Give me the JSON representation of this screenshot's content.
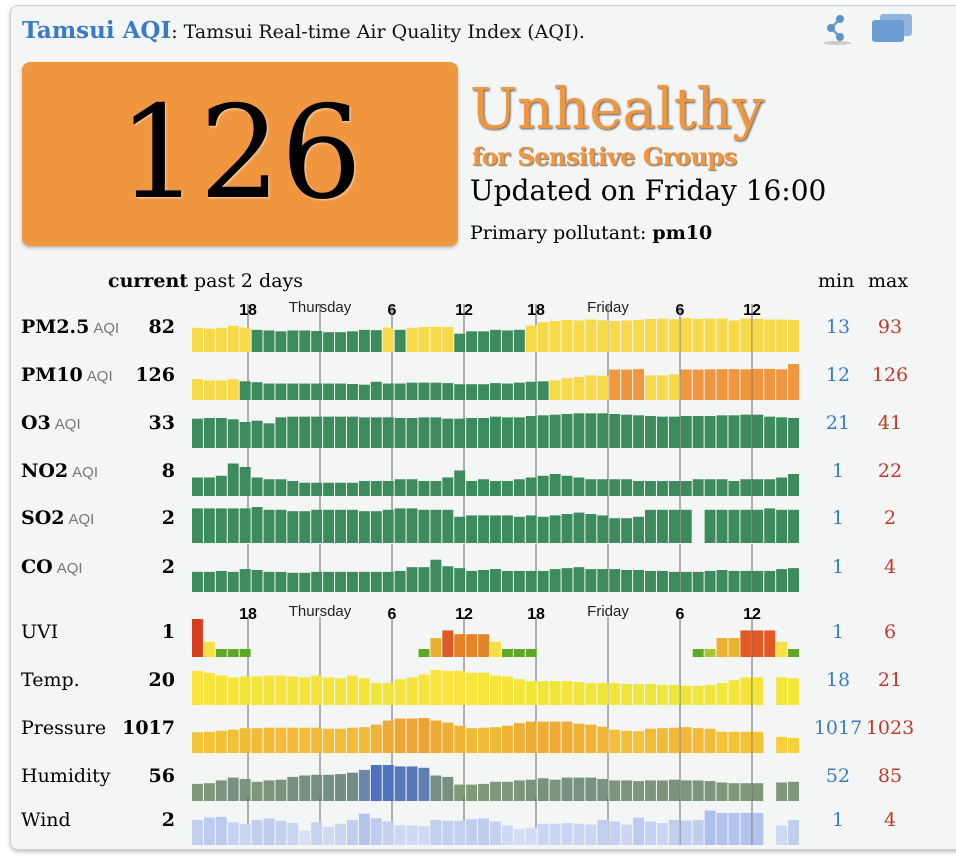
{
  "header": {
    "city": "Tamsui AQI",
    "colon": ":",
    "subtitle": "Tamsui Real-time Air Quality Index (AQI)."
  },
  "icons": {
    "share": "share-icon",
    "embed": "embed-widget-icon"
  },
  "aqi": {
    "value": "126",
    "level": "Unhealthy",
    "level_sub": "for Sensitive Groups",
    "color": "#ef963f",
    "updated": "Updated on Friday 16:00",
    "primary_label": "Primary pollutant:",
    "primary_value": "pm10"
  },
  "columns": {
    "current": "current",
    "history": "past 2 days",
    "min": "min",
    "max": "max"
  },
  "time_axis": [
    "18",
    "Thursday",
    "6",
    "12",
    "18",
    "Friday",
    "6",
    "12"
  ],
  "rows": [
    {
      "label": "PM2.5",
      "sub": "AQI",
      "current": "82",
      "min": "13",
      "max": "93",
      "type": "aqi",
      "ylim": [
        0,
        95
      ],
      "values": [
        55,
        52,
        55,
        62,
        56,
        48,
        46,
        43,
        46,
        46,
        44,
        40,
        40,
        43,
        48,
        47,
        56,
        48,
        55,
        58,
        58,
        58,
        35,
        43,
        43,
        48,
        46,
        48,
        62,
        74,
        78,
        82,
        80,
        83,
        80,
        78,
        80,
        82,
        85,
        86,
        84,
        88,
        85,
        86,
        86,
        80,
        86,
        85,
        83,
        83,
        82
      ]
    },
    {
      "label": "PM10",
      "sub": "AQI",
      "current": "126",
      "min": "12",
      "max": "126",
      "type": "aqi",
      "ylim": [
        0,
        126
      ],
      "values": [
        58,
        52,
        52,
        58,
        48,
        44,
        38,
        38,
        38,
        38,
        38,
        38,
        38,
        36,
        33,
        46,
        38,
        38,
        42,
        42,
        42,
        40,
        35,
        35,
        35,
        40,
        38,
        42,
        46,
        48,
        52,
        62,
        68,
        75,
        73,
        101,
        101,
        103,
        75,
        75,
        80,
        101,
        101,
        102,
        103,
        103,
        102,
        104,
        104,
        102,
        126
      ]
    },
    {
      "label": "O3",
      "sub": "AQI",
      "current": "33",
      "min": "21",
      "max": "41",
      "type": "aqi",
      "ylim": [
        0,
        42
      ],
      "values": [
        32,
        33,
        33,
        31,
        27,
        29,
        25,
        34,
        35,
        35,
        35,
        35,
        35,
        35,
        34,
        34,
        34,
        33,
        33,
        34,
        34,
        32,
        32,
        33,
        33,
        35,
        34,
        34,
        36,
        37,
        38,
        39,
        40,
        40,
        40,
        39,
        38,
        37,
        36,
        35,
        35,
        36,
        36,
        36,
        37,
        37,
        38,
        38,
        35,
        34,
        33
      ]
    },
    {
      "label": "NO2",
      "sub": "AQI",
      "current": "8",
      "min": "1",
      "max": "22",
      "type": "aqi",
      "ylim": [
        0,
        16
      ],
      "values": [
        6,
        6,
        7,
        14,
        12,
        6,
        5,
        5,
        4,
        3,
        3,
        3,
        3,
        3,
        4,
        4,
        4,
        5,
        5,
        4,
        4,
        6,
        10,
        4,
        5,
        4,
        4,
        5,
        6,
        7,
        8,
        7,
        6,
        5,
        5,
        5,
        5,
        4,
        4,
        4,
        4,
        4,
        5,
        5,
        5,
        4,
        5,
        5,
        5,
        6,
        8
      ]
    },
    {
      "label": "SO2",
      "sub": "AQI",
      "current": "2",
      "min": "1",
      "max": "2",
      "type": "aqi",
      "ylim": [
        0,
        2
      ],
      "values": [
        1.9,
        1.9,
        1.9,
        1.9,
        1.9,
        2,
        1.8,
        1.8,
        1.7,
        1.7,
        1.8,
        1.8,
        1.8,
        1.8,
        1.7,
        1.7,
        1.8,
        1.9,
        1.9,
        1.8,
        1.8,
        1.8,
        1.3,
        1.4,
        1.4,
        1.4,
        1.4,
        1.3,
        1.4,
        1.3,
        1.4,
        1.5,
        1.6,
        1.5,
        1.4,
        1.2,
        1.2,
        1.3,
        1.8,
        1.8,
        1.8,
        1.8,
        null,
        1.8,
        1.8,
        1.8,
        1.8,
        1.8,
        1.9,
        1.8,
        1.8
      ]
    },
    {
      "label": "CO",
      "sub": "AQI",
      "current": "2",
      "min": "1",
      "max": "4",
      "type": "aqi",
      "ylim": [
        0,
        3
      ],
      "values": [
        1.3,
        1.3,
        1.4,
        1.3,
        1.6,
        1.5,
        1.3,
        1.3,
        1.2,
        1.2,
        1.3,
        1.3,
        1.3,
        1.3,
        1.3,
        1.3,
        1.3,
        1.4,
        1.8,
        1.8,
        2.6,
        1.9,
        1.7,
        1.4,
        1.5,
        1.6,
        1.4,
        1.4,
        1.4,
        1.4,
        1.6,
        1.7,
        1.8,
        1.6,
        1.6,
        1.6,
        1.5,
        1.5,
        1.4,
        1.4,
        1.3,
        1.3,
        1.3,
        1.4,
        1.5,
        1.4,
        1.4,
        1.4,
        1.4,
        1.6,
        1.7
      ]
    },
    {
      "label": "UVI",
      "sub": "",
      "current": "1",
      "min": "1",
      "max": "6",
      "type": "uvi",
      "ylim": [
        0,
        10
      ],
      "values": [
        10,
        4,
        1,
        1,
        1,
        null,
        null,
        null,
        null,
        null,
        null,
        null,
        null,
        null,
        null,
        null,
        null,
        null,
        null,
        1,
        5,
        7,
        6,
        6,
        6,
        4,
        1,
        1,
        1,
        null,
        null,
        null,
        null,
        null,
        null,
        null,
        null,
        null,
        null,
        null,
        null,
        null,
        1,
        2,
        5,
        5,
        7,
        7,
        7,
        4,
        1
      ]
    },
    {
      "label": "Temp.",
      "sub": "",
      "current": "20",
      "min": "18",
      "max": "21",
      "type": "temp",
      "ylim": [
        18,
        21
      ],
      "values": [
        20.8,
        20.6,
        20.3,
        20.1,
        20.2,
        20.2,
        20.3,
        20.3,
        20.2,
        20.1,
        20.3,
        20.1,
        20.0,
        20.3,
        20.0,
        19.5,
        19.5,
        19.9,
        20.1,
        20.4,
        20.9,
        20.8,
        20.8,
        20.6,
        20.6,
        20.3,
        20.2,
        19.9,
        19.7,
        19.7,
        19.7,
        19.7,
        19.6,
        19.5,
        19.5,
        19.5,
        19.4,
        19.4,
        19.4,
        19.3,
        19.3,
        19.2,
        19.2,
        19.3,
        19.5,
        19.8,
        20.1,
        20.1,
        null,
        20.1,
        20.0
      ]
    },
    {
      "label": "Pressure",
      "sub": "",
      "current": "1017",
      "min": "1017",
      "max": "1023",
      "type": "pressure",
      "ylim": [
        1016,
        1021.5
      ],
      "values": [
        1018.5,
        1018.6,
        1018.8,
        1019,
        1019.3,
        1019.3,
        1019.4,
        1019.4,
        1019.4,
        1019.4,
        1019.4,
        1019.2,
        1019.2,
        1019.4,
        1019.5,
        1020,
        1020.8,
        1021.2,
        1021.2,
        1021.3,
        1020.8,
        1020.4,
        1019.8,
        1019.3,
        1019.4,
        1019.5,
        1019.8,
        1020.3,
        1020.6,
        1020.6,
        1020.6,
        1020.6,
        1020.2,
        1020,
        1019.6,
        1019,
        1018.8,
        1018.7,
        1019.2,
        1019.3,
        1019.4,
        1019.5,
        1019.3,
        1019.2,
        1018.6,
        1018.6,
        1018.6,
        1018.6,
        null,
        1017.6,
        1017.4
      ]
    },
    {
      "label": "Humidity",
      "sub": "",
      "current": "56",
      "min": "52",
      "max": "85",
      "type": "humidity",
      "ylim": [
        45,
        85
      ],
      "values": [
        58,
        59,
        63,
        67,
        65,
        61,
        63,
        64,
        68,
        70,
        71,
        71,
        72,
        74,
        78,
        85,
        85,
        83,
        83,
        81,
        70,
        68,
        57,
        57,
        58,
        61,
        61,
        63,
        64,
        66,
        64,
        67,
        67,
        67,
        65,
        63,
        63,
        62,
        63,
        63,
        64,
        63,
        63,
        62,
        60,
        59,
        59,
        59,
        null,
        60,
        61
      ]
    },
    {
      "label": "Wind",
      "sub": "",
      "current": "2",
      "min": "1",
      "max": "4",
      "type": "wind",
      "ylim": [
        0,
        3.6
      ],
      "values": [
        2.2,
        2.5,
        2.6,
        1.9,
        1.7,
        2.2,
        2.4,
        2.1,
        1.8,
        0.8,
        1.9,
        1.3,
        1.7,
        2.2,
        3,
        2.4,
        2,
        1.5,
        1.5,
        1.4,
        2.2,
        2.1,
        2.1,
        2.3,
        2.4,
        2,
        1.5,
        1,
        1.2,
        1.7,
        1.7,
        1.8,
        1.7,
        1.6,
        2.2,
        2,
        1.6,
        2.5,
        2,
        1.8,
        2.2,
        2.1,
        2.2,
        3.4,
        3.1,
        3.1,
        3.1,
        3.1,
        null,
        1.5,
        2.2
      ]
    }
  ]
}
